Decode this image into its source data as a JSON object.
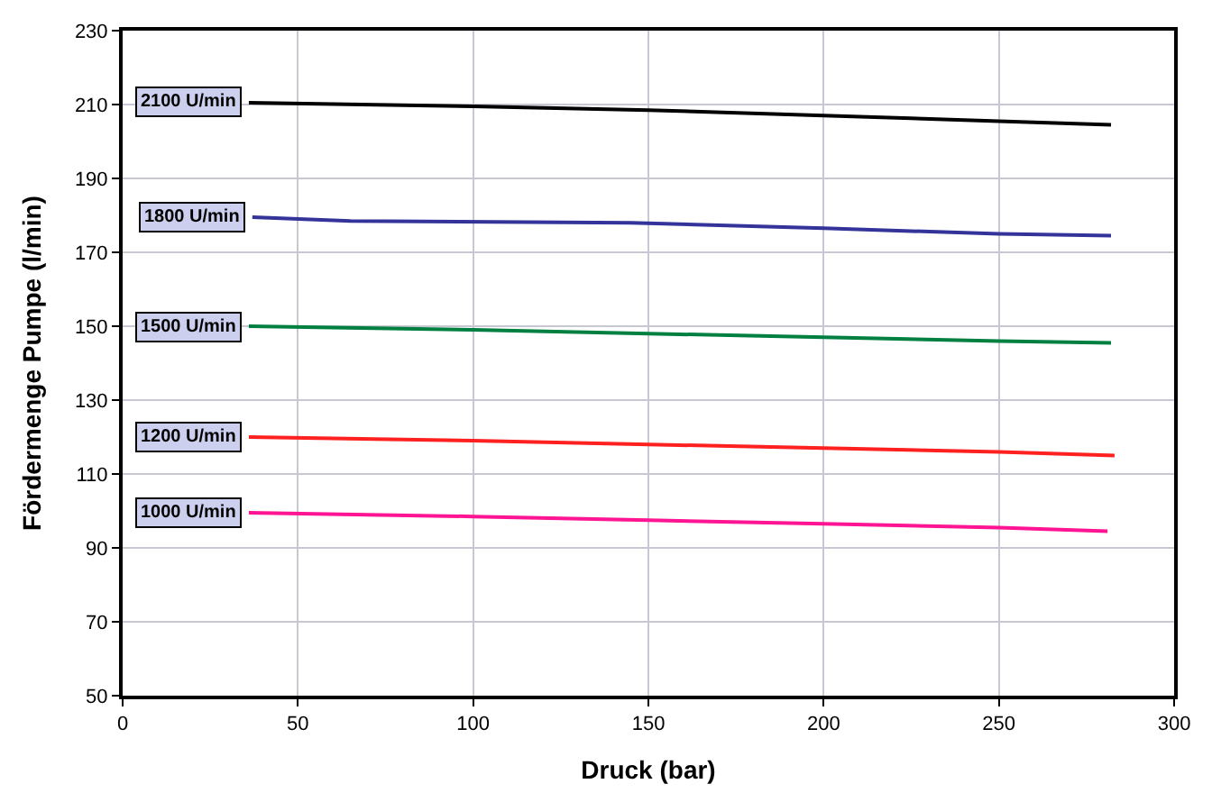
{
  "chart_data": {
    "type": "line",
    "xlabel": "Druck (bar)",
    "ylabel": "Fördermenge Pumpe (l/min)",
    "xlim": [
      0,
      300
    ],
    "xticks": [
      0,
      50,
      100,
      150,
      200,
      250,
      300
    ],
    "ylim": [
      50,
      230
    ],
    "yticks": [
      50,
      70,
      90,
      110,
      130,
      150,
      170,
      190,
      210,
      230
    ],
    "grid": true,
    "legend": false,
    "marker": "none",
    "line_style": "solid",
    "series": [
      {
        "name": "2100 U/min",
        "color": "#000000",
        "x": [
          36,
          100,
          150,
          200,
          250,
          282
        ],
        "values": [
          210.5,
          209.5,
          208.5,
          207,
          205.5,
          204.5
        ]
      },
      {
        "name": "1800 U/min",
        "color": "#333399",
        "x": [
          37,
          65,
          145,
          200,
          250,
          282
        ],
        "values": [
          179.5,
          178.5,
          178,
          176.5,
          175,
          174.5
        ]
      },
      {
        "name": "1500 U/min",
        "color": "#008040",
        "x": [
          36,
          100,
          150,
          200,
          250,
          282
        ],
        "values": [
          150,
          149,
          148,
          147,
          146,
          145.5
        ]
      },
      {
        "name": "1200 U/min",
        "color": "#ff2020",
        "x": [
          36,
          100,
          150,
          200,
          250,
          283
        ],
        "values": [
          120,
          119,
          118,
          117,
          116,
          115
        ]
      },
      {
        "name": "1000 U/min",
        "color": "#ff1493",
        "x": [
          36,
          100,
          150,
          200,
          250,
          281
        ],
        "values": [
          99.5,
          98.5,
          97.5,
          96.5,
          95.5,
          94.5
        ]
      }
    ]
  }
}
